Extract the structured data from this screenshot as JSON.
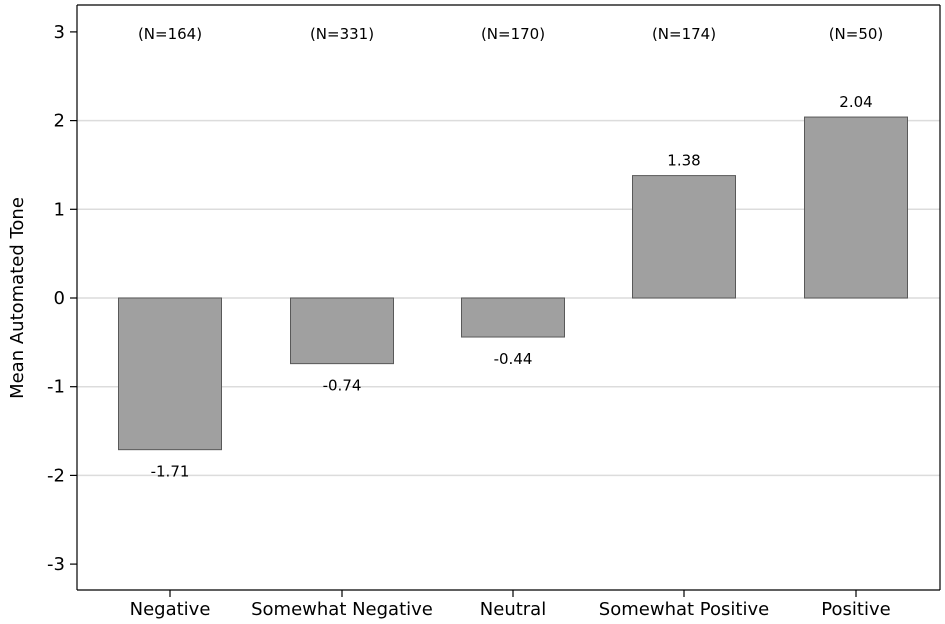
{
  "chart_data": {
    "type": "bar",
    "categories": [
      "Negative",
      "Somewhat Negative",
      "Neutral",
      "Somewhat Positive",
      "Positive"
    ],
    "values": [
      -1.71,
      -0.74,
      -0.44,
      1.38,
      2.04
    ],
    "value_labels": [
      "-1.71",
      "-0.74",
      "-0.44",
      "1.38",
      "2.04"
    ],
    "n_labels": [
      "(N=164)",
      "(N=331)",
      "(N=170)",
      "(N=174)",
      "(N=50)"
    ],
    "ylabel": "Mean Automated Tone",
    "xlabel": "",
    "ylim": [
      -3.3,
      3.3
    ],
    "yticks": [
      -3,
      -2,
      -1,
      0,
      1,
      2,
      3
    ],
    "ytick_labels": [
      "-3",
      "-2",
      "-1",
      "0",
      "1",
      "2",
      "3"
    ],
    "grid": true,
    "legend": "none"
  },
  "colors": {
    "bar_fill": "#a0a0a0",
    "bar_stroke": "#595959",
    "grid": "#dcdcdc",
    "axis": "#000000"
  }
}
